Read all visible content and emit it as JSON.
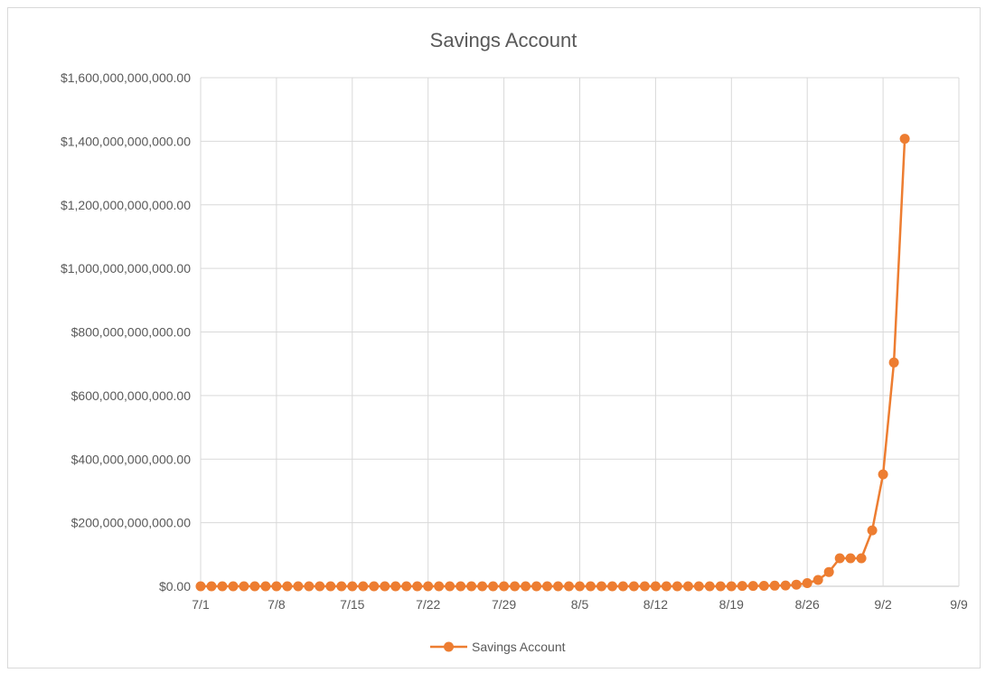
{
  "chart_data": {
    "type": "line",
    "title": "Savings Account",
    "xlabel": "",
    "ylabel": "",
    "x_axis": {
      "kind": "date",
      "min": "7/1",
      "max": "9/9",
      "tick_labels": [
        "7/1",
        "7/8",
        "7/15",
        "7/22",
        "7/29",
        "8/5",
        "8/12",
        "8/19",
        "8/26",
        "9/2",
        "9/9"
      ]
    },
    "y_axis": {
      "min": 0,
      "max": 1600000000000,
      "tick_labels": [
        "$0.00",
        "$200,000,000,000.00",
        "$400,000,000,000.00",
        "$600,000,000,000.00",
        "$800,000,000,000.00",
        "$1,000,000,000,000.00",
        "$1,200,000,000,000.00",
        "$1,400,000,000,000.00",
        "$1,600,000,000,000.00"
      ]
    },
    "grid": true,
    "legend_position": "bottom",
    "series": [
      {
        "name": "Savings Account",
        "color": "#ED7D31",
        "marker": "circle",
        "points": [
          [
            "7/1",
            0
          ],
          [
            "7/2",
            0
          ],
          [
            "7/3",
            0
          ],
          [
            "7/4",
            0
          ],
          [
            "7/5",
            0
          ],
          [
            "7/6",
            0
          ],
          [
            "7/7",
            0
          ],
          [
            "7/8",
            0
          ],
          [
            "7/9",
            0
          ],
          [
            "7/10",
            0
          ],
          [
            "7/11",
            0
          ],
          [
            "7/12",
            0
          ],
          [
            "7/13",
            0
          ],
          [
            "7/14",
            0
          ],
          [
            "7/15",
            0
          ],
          [
            "7/16",
            0
          ],
          [
            "7/17",
            0
          ],
          [
            "7/18",
            0
          ],
          [
            "7/19",
            0
          ],
          [
            "7/20",
            0
          ],
          [
            "7/21",
            0
          ],
          [
            "7/22",
            0
          ],
          [
            "7/23",
            0
          ],
          [
            "7/24",
            0
          ],
          [
            "7/25",
            0
          ],
          [
            "7/26",
            0
          ],
          [
            "7/27",
            0
          ],
          [
            "7/28",
            0
          ],
          [
            "7/29",
            0
          ],
          [
            "7/30",
            0
          ],
          [
            "7/31",
            0
          ],
          [
            "8/1",
            0
          ],
          [
            "8/2",
            0
          ],
          [
            "8/3",
            0
          ],
          [
            "8/4",
            0
          ],
          [
            "8/5",
            0
          ],
          [
            "8/6",
            0
          ],
          [
            "8/7",
            0
          ],
          [
            "8/8",
            0
          ],
          [
            "8/9",
            0
          ],
          [
            "8/10",
            0
          ],
          [
            "8/11",
            0
          ],
          [
            "8/12",
            0
          ],
          [
            "8/13",
            0
          ],
          [
            "8/14",
            0
          ],
          [
            "8/15",
            0
          ],
          [
            "8/16",
            0
          ],
          [
            "8/17",
            0
          ],
          [
            "8/18",
            0
          ],
          [
            "8/19",
            0
          ],
          [
            "8/20",
            1000000000
          ],
          [
            "8/21",
            1000000000
          ],
          [
            "8/22",
            1500000000
          ],
          [
            "8/23",
            2000000000
          ],
          [
            "8/24",
            2500000000
          ],
          [
            "8/25",
            5000000000
          ],
          [
            "8/26",
            10000000000
          ],
          [
            "8/27",
            20000000000
          ],
          [
            "8/28",
            45000000000
          ],
          [
            "8/29",
            88000000000
          ],
          [
            "8/30",
            88000000000
          ],
          [
            "8/31",
            88000000000
          ],
          [
            "9/1",
            176000000000
          ],
          [
            "9/2",
            352000000000
          ],
          [
            "9/3",
            704000000000
          ],
          [
            "9/4",
            1408000000000
          ]
        ]
      }
    ]
  }
}
